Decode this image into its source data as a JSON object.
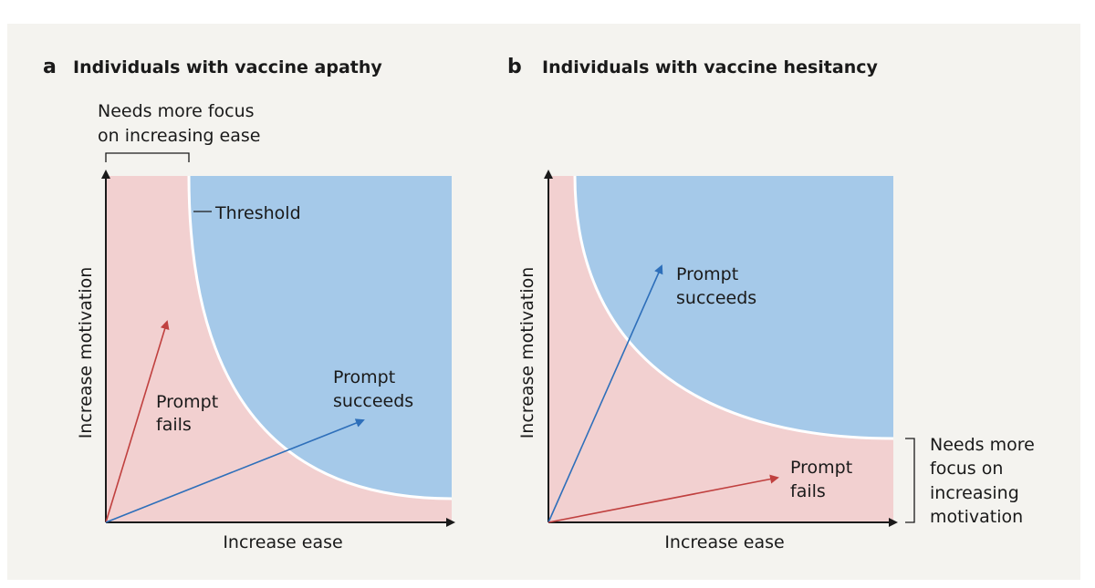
{
  "colors": {
    "background": "#f4f3ef",
    "fail_region": "#f2d0d0",
    "success_region": "#a5c9e9",
    "threshold_line": "#ffffff",
    "axis": "#1a1a1a",
    "fail_arrow": "#c0403f",
    "success_arrow": "#2e6fba"
  },
  "panel_a": {
    "letter": "a",
    "title": "Individuals with vaccine apathy",
    "focus_note_line1": "Needs more focus",
    "focus_note_line2": "on increasing ease",
    "threshold_label": "Threshold",
    "y_axis_label": "Increase motivation",
    "x_axis_label": "Increase ease",
    "fail_label_line1": "Prompt",
    "fail_label_line2": "fails",
    "success_label_line1": "Prompt",
    "success_label_line2": "succeeds"
  },
  "panel_b": {
    "letter": "b",
    "title": "Individuals with vaccine hesitancy",
    "focus_note_line1": "Needs more",
    "focus_note_line2": "focus on",
    "focus_note_line3": "increasing",
    "focus_note_line4": "motivation",
    "y_axis_label": "Increase motivation",
    "x_axis_label": "Increase ease",
    "success_label_line1": "Prompt",
    "success_label_line2": "succeeds",
    "fail_label_line1": "Prompt",
    "fail_label_line2": "fails"
  }
}
